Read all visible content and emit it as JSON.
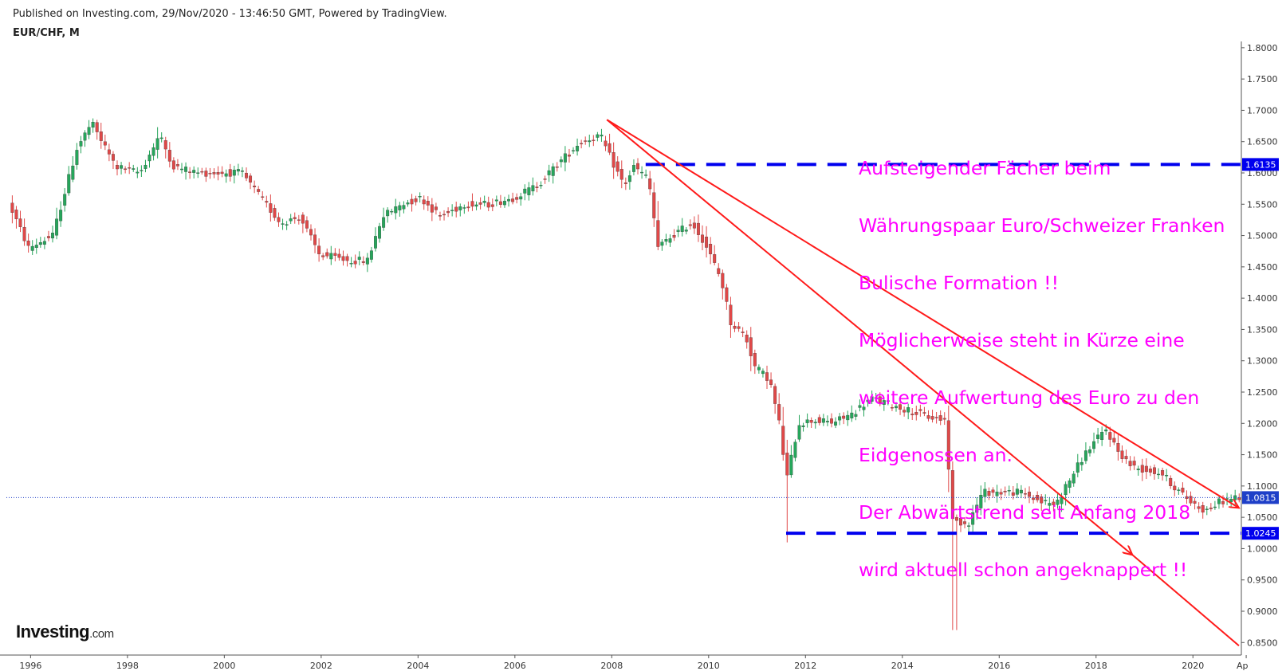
{
  "header": {
    "published": "Published on Investing.com, 29/Nov/2020 - 13:46:50 GMT, Powered by TradingView.",
    "symbol": "EUR/CHF, M"
  },
  "logo": {
    "name": "Investing",
    "suffix": ".com"
  },
  "annotation": {
    "lines": [
      "Aufsteigender Fächer beim",
      "Währungspaar Euro/Schweizer Franken",
      "Bulische Formation !!",
      "Möglicherweise steht in Kürze eine",
      "weitere Aufwertung des Euro zu den",
      "Eidgenossen an.",
      "Der Abwärtstrend seit Anfang 2018",
      "wird aktuell schon angeknappert !!"
    ],
    "color": "#ff00ff"
  },
  "colors": {
    "up": "#26a65b",
    "down": "#e04848",
    "trendline": "#ff1a1a",
    "support_line": "#0000ee",
    "current_price": "#1e3fc8"
  },
  "chart_data": {
    "type": "candlestick",
    "title": "EUR/CHF, M",
    "xlabel": "",
    "ylabel": "",
    "xlim": [
      1995.5,
      2021.0
    ],
    "ylim": [
      0.83,
      1.81
    ],
    "x_ticks": [
      "1996",
      "1998",
      "2000",
      "2002",
      "2004",
      "2006",
      "2008",
      "2010",
      "2012",
      "2014",
      "2016",
      "2018",
      "2020",
      "Ap"
    ],
    "y_ticks": [
      "1.8000",
      "1.7500",
      "1.7000",
      "1.6500",
      "1.6000",
      "1.5500",
      "1.5000",
      "1.4500",
      "1.4000",
      "1.3500",
      "1.3000",
      "1.2500",
      "1.2000",
      "1.1500",
      "1.1000",
      "1.0500",
      "1.0000",
      "0.9500",
      "0.9000",
      "0.8500"
    ],
    "grid": false,
    "price_path": [
      [
        1995.6,
        1.55
      ],
      [
        1996.0,
        1.48
      ],
      [
        1996.5,
        1.5
      ],
      [
        1997.0,
        1.64
      ],
      [
        1997.3,
        1.68
      ],
      [
        1997.8,
        1.61
      ],
      [
        1998.3,
        1.6
      ],
      [
        1998.7,
        1.66
      ],
      [
        1999.0,
        1.61
      ],
      [
        1999.5,
        1.6
      ],
      [
        2000.0,
        1.6
      ],
      [
        2000.4,
        1.6
      ],
      [
        2000.8,
        1.56
      ],
      [
        2001.2,
        1.52
      ],
      [
        2001.6,
        1.53
      ],
      [
        2002.0,
        1.47
      ],
      [
        2002.6,
        1.46
      ],
      [
        2003.0,
        1.46
      ],
      [
        2003.3,
        1.53
      ],
      [
        2003.7,
        1.55
      ],
      [
        2004.1,
        1.56
      ],
      [
        2004.5,
        1.53
      ],
      [
        2005.0,
        1.55
      ],
      [
        2005.5,
        1.55
      ],
      [
        2006.0,
        1.56
      ],
      [
        2006.5,
        1.58
      ],
      [
        2007.0,
        1.62
      ],
      [
        2007.4,
        1.65
      ],
      [
        2007.8,
        1.66
      ],
      [
        2008.1,
        1.61
      ],
      [
        2008.3,
        1.58
      ],
      [
        2008.5,
        1.61
      ],
      [
        2008.8,
        1.59
      ],
      [
        2009.0,
        1.48
      ],
      [
        2009.3,
        1.5
      ],
      [
        2009.7,
        1.52
      ],
      [
        2009.95,
        1.49
      ],
      [
        2010.3,
        1.43
      ],
      [
        2010.5,
        1.36
      ],
      [
        2010.8,
        1.34
      ],
      [
        2011.0,
        1.29
      ],
      [
        2011.3,
        1.27
      ],
      [
        2011.5,
        1.2
      ],
      [
        2011.65,
        1.11
      ],
      [
        2011.9,
        1.2
      ],
      [
        2012.2,
        1.205
      ],
      [
        2012.6,
        1.201
      ],
      [
        2013.0,
        1.215
      ],
      [
        2013.4,
        1.24
      ],
      [
        2013.8,
        1.23
      ],
      [
        2014.2,
        1.22
      ],
      [
        2014.6,
        1.21
      ],
      [
        2014.95,
        1.205
      ],
      [
        2015.05,
        1.045
      ],
      [
        2015.4,
        1.04
      ],
      [
        2015.7,
        1.09
      ],
      [
        2016.0,
        1.09
      ],
      [
        2016.5,
        1.09
      ],
      [
        2016.9,
        1.075
      ],
      [
        2017.2,
        1.07
      ],
      [
        2017.5,
        1.11
      ],
      [
        2017.8,
        1.15
      ],
      [
        2018.0,
        1.17
      ],
      [
        2018.25,
        1.19
      ],
      [
        2018.5,
        1.155
      ],
      [
        2018.8,
        1.13
      ],
      [
        2019.1,
        1.125
      ],
      [
        2019.4,
        1.12
      ],
      [
        2019.7,
        1.095
      ],
      [
        2020.0,
        1.075
      ],
      [
        2020.3,
        1.06
      ],
      [
        2020.6,
        1.075
      ],
      [
        2020.9,
        1.0815
      ]
    ],
    "extreme_wicks": [
      {
        "date": 2011.6,
        "low": 1.01
      },
      {
        "date": 2015.03,
        "low": 0.87
      }
    ],
    "horizontal_levels": [
      {
        "value": 1.6135,
        "label": "1.6135",
        "from": 2008.7,
        "style": "dashed"
      },
      {
        "value": 1.0245,
        "label": "1.0245",
        "from": 2011.6,
        "style": "dashed"
      }
    ],
    "current_price": {
      "value": 1.0815,
      "label": "1.0815"
    },
    "trendlines": [
      {
        "from": [
          2007.9,
          1.685
        ],
        "to": [
          2020.95,
          1.065
        ],
        "arrow": true
      },
      {
        "from": [
          2007.9,
          1.685
        ],
        "to": [
          2018.75,
          0.99
        ],
        "arrow": true
      },
      {
        "from": [
          2018.75,
          0.99
        ],
        "to": [
          2020.95,
          0.845
        ],
        "arrow": false
      }
    ]
  }
}
